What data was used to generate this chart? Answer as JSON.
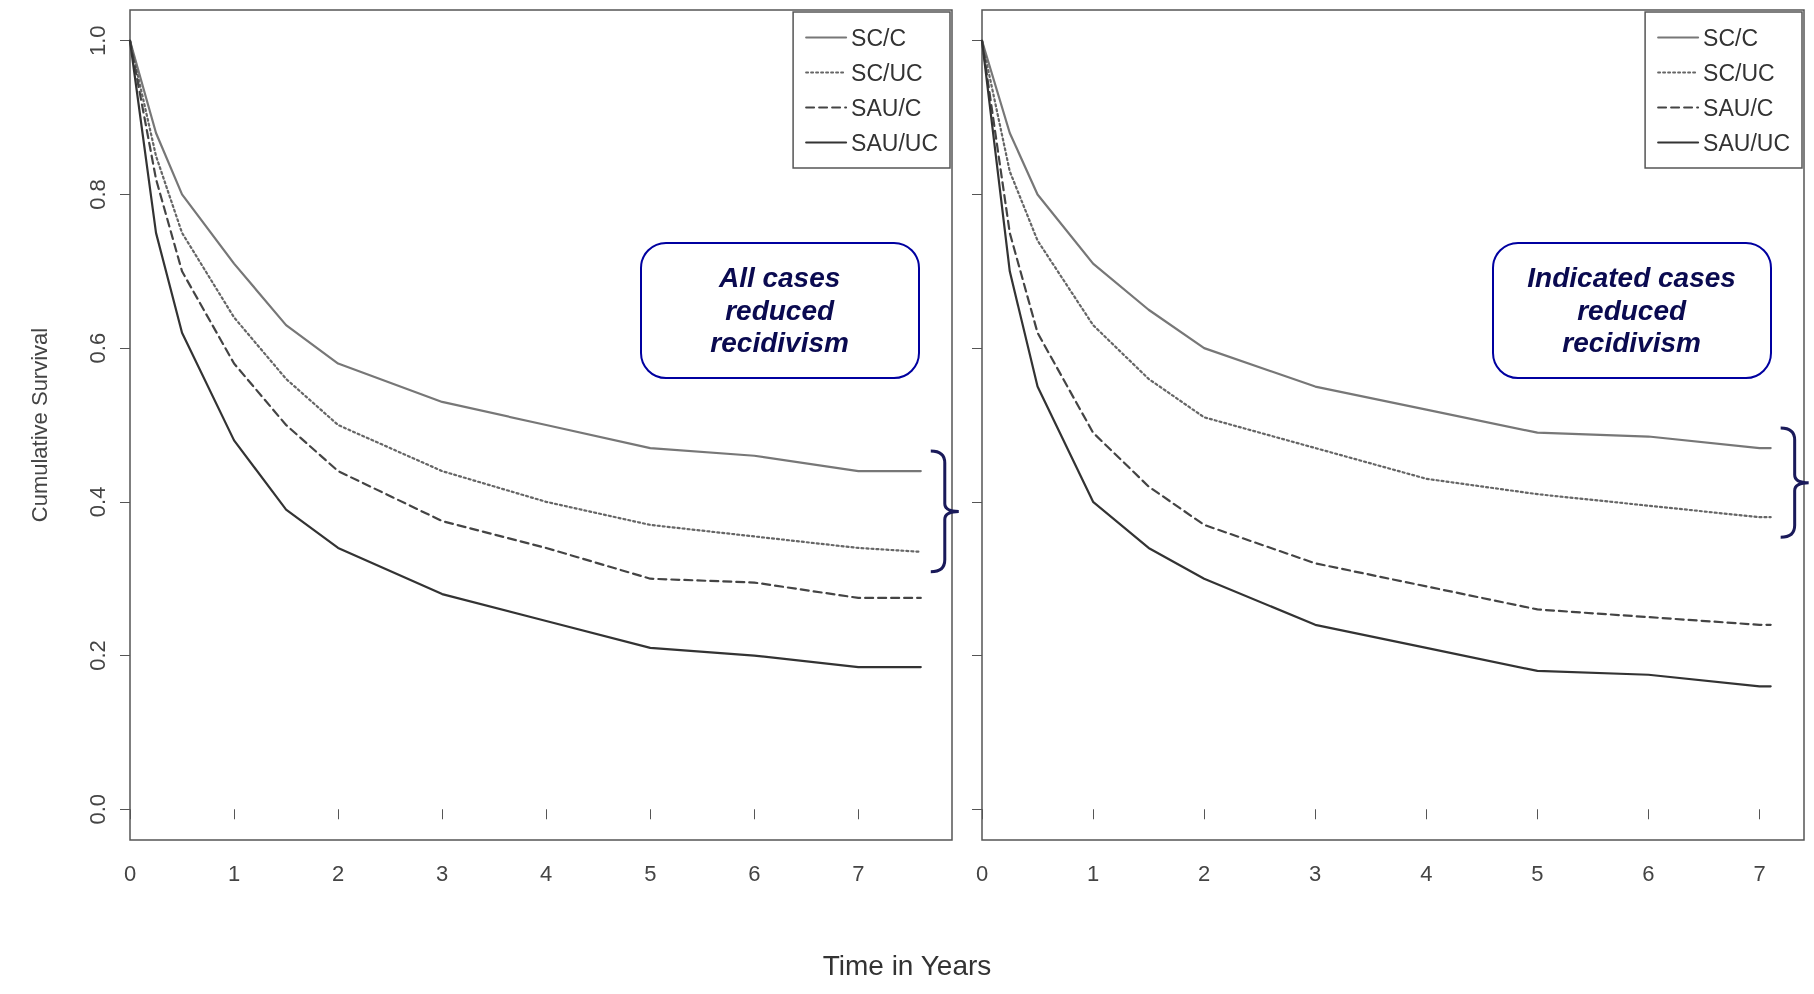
{
  "chart_data": [
    {
      "type": "line",
      "ylabel": "Cumulative Survival",
      "xlabel": "Time in Years",
      "annotations": [
        "All cases reduced recidivism"
      ],
      "x": [
        0,
        0.25,
        0.5,
        1,
        1.5,
        2,
        3,
        4,
        5,
        6,
        7,
        7.6
      ],
      "xlim": [
        0,
        7.9
      ],
      "xticks": [
        0,
        1,
        2,
        3,
        4,
        5,
        6,
        7
      ],
      "ylim": [
        -0.04,
        1.04
      ],
      "yticks": [
        {
          "value": 0,
          "label": "0.0"
        },
        0.2,
        0.4,
        0.6,
        0.8,
        {
          "value": 1,
          "label": "1.0"
        }
      ],
      "legend": "top right",
      "grid": false,
      "series": [
        {
          "name": "SC/C",
          "color": "#777777",
          "line_style": "solid",
          "values": [
            1,
            0.88,
            0.8,
            0.71,
            0.63,
            0.58,
            0.53,
            0.5,
            0.47,
            0.46,
            0.44,
            0.44
          ]
        },
        {
          "name": "SC/UC",
          "color": "#666666",
          "line_style": "dotted",
          "values": [
            1,
            0.85,
            0.75,
            0.64,
            0.56,
            0.5,
            0.44,
            0.4,
            0.37,
            0.355,
            0.34,
            0.335
          ]
        },
        {
          "name": "SAU/C",
          "color": "#444444",
          "line_style": "dashed",
          "values": [
            1,
            0.82,
            0.7,
            0.58,
            0.5,
            0.44,
            0.375,
            0.34,
            0.3,
            0.295,
            0.275,
            0.275
          ]
        },
        {
          "name": "SAU/UC",
          "color": "#333333",
          "line_style": "solid",
          "values": [
            1,
            0.75,
            0.62,
            0.48,
            0.39,
            0.34,
            0.28,
            0.245,
            0.21,
            0.2,
            0.185,
            0.185
          ]
        }
      ]
    },
    {
      "type": "line",
      "annotations": [
        "Indicated cases reduced recidivism"
      ],
      "x": [
        0,
        0.25,
        0.5,
        1,
        1.5,
        2,
        3,
        4,
        5,
        6,
        7,
        7.1
      ],
      "xlim": [
        0,
        7.4
      ],
      "xticks": [
        0,
        1,
        2,
        3,
        4,
        5,
        6,
        7
      ],
      "ylim": [
        -0.04,
        1.04
      ],
      "yticks": [
        0,
        0.2,
        0.4,
        0.6,
        0.8,
        1
      ],
      "tick_labels": "x",
      "legend": "top right",
      "grid": false,
      "series": [
        {
          "name": "SC/C",
          "color": "#777777",
          "line_style": "solid",
          "values": [
            1,
            0.88,
            0.8,
            0.71,
            0.65,
            0.6,
            0.55,
            0.52,
            0.49,
            0.485,
            0.47,
            0.47
          ]
        },
        {
          "name": "SC/UC",
          "color": "#666666",
          "line_style": "dotted",
          "values": [
            1,
            0.83,
            0.74,
            0.63,
            0.56,
            0.51,
            0.47,
            0.43,
            0.41,
            0.395,
            0.38,
            0.38
          ]
        },
        {
          "name": "SAU/C",
          "color": "#444444",
          "line_style": "dashed",
          "values": [
            1,
            0.75,
            0.62,
            0.49,
            0.42,
            0.37,
            0.32,
            0.29,
            0.26,
            0.25,
            0.24,
            0.24
          ]
        },
        {
          "name": "SAU/UC",
          "color": "#333333",
          "line_style": "solid",
          "values": [
            1,
            0.7,
            0.55,
            0.4,
            0.34,
            0.3,
            0.24,
            0.21,
            0.18,
            0.175,
            0.16,
            0.16
          ]
        }
      ]
    }
  ]
}
